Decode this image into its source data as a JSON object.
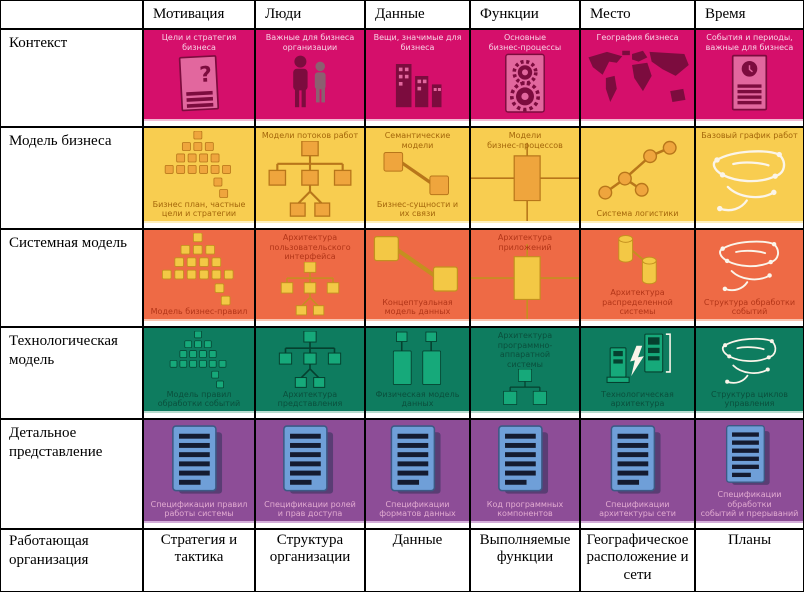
{
  "columns": [
    {
      "key": "motivation",
      "label": "Мотивация"
    },
    {
      "key": "people",
      "label": "Люди"
    },
    {
      "key": "data",
      "label": "Данные"
    },
    {
      "key": "functions",
      "label": "Функции"
    },
    {
      "key": "place",
      "label": "Место"
    },
    {
      "key": "time",
      "label": "Время"
    }
  ],
  "corner_label": "",
  "rows": [
    {
      "key": "context",
      "label": "Контекст",
      "colors": {
        "bg": "#d50f6b",
        "edge": "#f2b9d3",
        "text": "#f8d3e5",
        "icon": "#e2679e",
        "icon_dark": "#7c0c3e"
      },
      "cells": [
        {
          "top": "Цели и стратегия бизнеса",
          "icon": "document-question-icon"
        },
        {
          "top": "Важные для бизнеса\nорганизации",
          "icon": "people-icon"
        },
        {
          "top": "Вещи, значимые для\nбизнеса",
          "icon": "buildings-icon"
        },
        {
          "top": "Основные\nбизнес-процессы",
          "icon": "gears-icon"
        },
        {
          "top": "География бизнеса",
          "icon": "world-map-icon"
        },
        {
          "top": "События и периоды,\nважные для бизнеса",
          "icon": "document-clock-icon"
        }
      ]
    },
    {
      "key": "business-model",
      "label": "Модель бизнеса",
      "colors": {
        "bg": "#f8cd50",
        "edge": "#fdeebc",
        "text": "#a4660a",
        "icon": "#efa53d",
        "icon_dark": "#b8761a"
      },
      "cells": [
        {
          "bottom": "Бизнес план, частные\nцели и стратегии",
          "icon": "pyramid-icon"
        },
        {
          "top": "Модели потоков работ",
          "icon": "org-tree-icon"
        },
        {
          "top": "Семантические модели",
          "bottom": "Бизнес-сущности и\nих связи",
          "icon": "link-boxes-icon"
        },
        {
          "top": "Модели\nбизнес-процессов",
          "icon": "process-cross-icon"
        },
        {
          "bottom": "Система логистики",
          "icon": "network-icon"
        },
        {
          "top": "Базовый график работ",
          "icon": "sketch-icon"
        }
      ]
    },
    {
      "key": "system-model",
      "label": "Системная модель",
      "colors": {
        "bg": "#ee6a45",
        "edge": "#f9c3ae",
        "text": "#b23518",
        "icon": "#f3c845",
        "icon_dark": "#c4901f"
      },
      "cells": [
        {
          "bottom": "Модель бизнес-правил",
          "icon": "pyramid-icon"
        },
        {
          "top": "Архитектура\nпользовательского\nинтерфейса",
          "icon": "org-tree-icon"
        },
        {
          "bottom": "Концептуальная\nмодель данных",
          "icon": "link-boxes-icon"
        },
        {
          "top": "Архитектура\nприложений",
          "icon": "process-cross-icon"
        },
        {
          "bottom": "Архитектура\nраспределенной\nсистемы",
          "icon": "cylinders-icon"
        },
        {
          "bottom": "Структура обработки\nсобытий",
          "icon": "sketch-icon"
        }
      ]
    },
    {
      "key": "technology-model",
      "label": "Технологическая модель",
      "colors": {
        "bg": "#0e7c5f",
        "edge": "#b9dccf",
        "text": "#0a4f3c",
        "icon": "#16a97a",
        "icon_dark": "#05402f"
      },
      "cells": [
        {
          "bottom": "Модель правил\nобработки событий",
          "icon": "pyramid-icon"
        },
        {
          "bottom": "Архитектура\nпредставления",
          "icon": "org-tree-icon"
        },
        {
          "bottom": "Физическая модель\nданных",
          "icon": "data-boxes-icon"
        },
        {
          "top": "Архитектура\nпрограммно-аппаратной\nсистемы",
          "icon": "tree-icon"
        },
        {
          "bottom": "Технологическая\nархитектура",
          "icon": "computers-icon"
        },
        {
          "bottom": "Структура циклов\nуправления",
          "icon": "sketch-icon"
        }
      ]
    },
    {
      "key": "detailed-representation",
      "label": "Детальное представление",
      "colors": {
        "bg": "#8d4d97",
        "edge": "#d3aed9",
        "text": "#e2abd1",
        "icon": "#6f9fd8",
        "icon_dark": "#1d2b49"
      },
      "cells": [
        {
          "bottom": "Спецификации правил\nработы системы",
          "icon": "spec-doc-icon"
        },
        {
          "bottom": "Спецификации ролей\nи прав доступа",
          "icon": "spec-doc-icon"
        },
        {
          "bottom": "Спецификации\nформатов данных",
          "icon": "spec-doc-icon"
        },
        {
          "bottom": "Код программных\nкомпонентов",
          "icon": "spec-doc-icon"
        },
        {
          "bottom": "Спецификации\nархитектуры сети",
          "icon": "spec-doc-icon"
        },
        {
          "bottom": "Спецификации обработки\nсобытий и прерываний",
          "icon": "spec-doc-icon"
        }
      ]
    }
  ],
  "footer": {
    "label": "Работающая организация",
    "cells": [
      "Стратегия и тактика",
      "Структура организации",
      "Данные",
      "Выполняемые функции",
      "Географическое расположение и сети",
      "Планы"
    ]
  }
}
